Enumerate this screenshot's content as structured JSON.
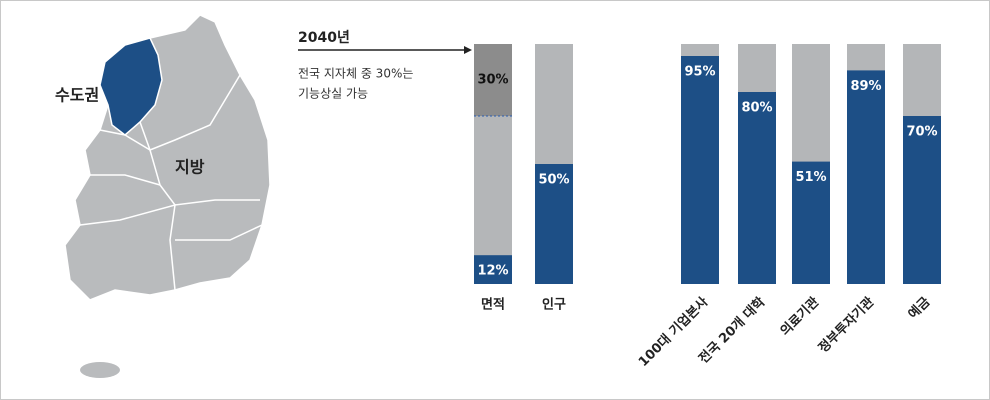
{
  "chart_data": {
    "type": "bar",
    "categories": [
      "면적",
      "인구",
      "100대 기업본사",
      "전국 20개 대학",
      "의료기관",
      "정부투자기관",
      "예금"
    ],
    "values": [
      12,
      50,
      95,
      80,
      51,
      89,
      70
    ],
    "value_labels": [
      "12%",
      "50%",
      "95%",
      "80%",
      "51%",
      "89%",
      "70%"
    ],
    "color": "#1d4f86",
    "ylim": [
      0,
      100
    ],
    "highlight": {
      "value": 30,
      "value_label": "30%",
      "color": "#8c8c8c"
    },
    "annotation": {
      "title": "2040년",
      "lines": [
        "전국 지자체 중 30%는",
        "기능상실 가능"
      ]
    },
    "map": {
      "labels": [
        "수도권",
        "지방"
      ]
    }
  }
}
